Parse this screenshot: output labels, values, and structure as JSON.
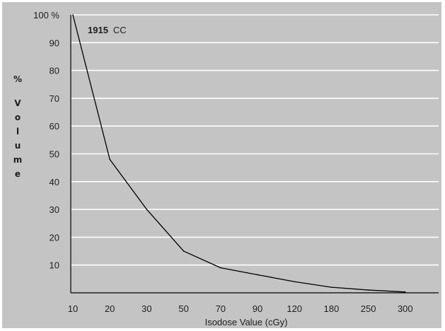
{
  "chart_data": {
    "type": "line",
    "title": "",
    "xlabel": "Isodose Value (cGy)",
    "ylabel": "% Volume",
    "categories": [
      "10",
      "20",
      "30",
      "50",
      "70",
      "90",
      "120",
      "180",
      "250",
      "300"
    ],
    "y_ticks": [
      "100 %",
      "90",
      "80",
      "70",
      "60",
      "50",
      "40",
      "30",
      "20",
      "10"
    ],
    "ylim": [
      0,
      100
    ],
    "grid": true,
    "series": [
      {
        "values": [
          100,
          48,
          30,
          15,
          9,
          6.5,
          4,
          2,
          1,
          0.3
        ]
      }
    ],
    "annotation": {
      "value": "1915",
      "unit": "CC"
    }
  },
  "colors": {
    "background": "#c4c4c4",
    "gridline": "#ffffff",
    "axis": "#000000",
    "line": "#000000",
    "text": "#1e1e1e"
  }
}
